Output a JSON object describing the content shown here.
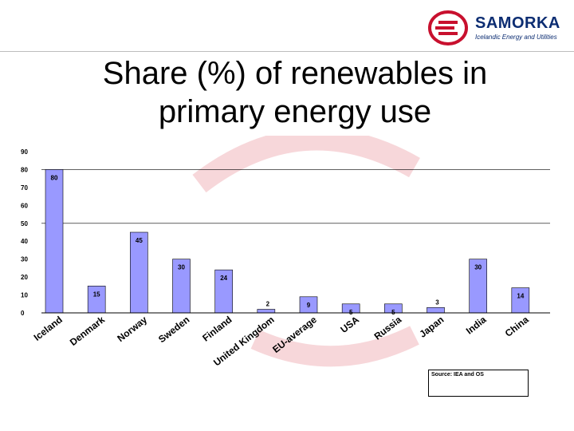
{
  "logo": {
    "name": "SAMORKA",
    "tagline": "Icelandic Energy and Utilities",
    "colors": {
      "red": "#c8102e",
      "navy": "#0c2d72"
    }
  },
  "slide": {
    "title_line1": "Share (%) of renewables in",
    "title_line2": "primary energy use",
    "source_note": "Source: IEA and OS"
  },
  "chart_data": {
    "type": "bar",
    "title": "Share (%) of renewables in primary energy use",
    "xlabel": "",
    "ylabel": "",
    "ylim": [
      0,
      90
    ],
    "yticks": [
      0,
      10,
      20,
      30,
      40,
      50,
      60,
      70,
      80,
      90
    ],
    "grid": "horizontal at 50 and 80",
    "bar_color": "#9999ff",
    "categories": [
      "Iceland",
      "Denmark",
      "Norway",
      "Sweden",
      "Finland",
      "United Kingdom",
      "EU-average",
      "USA",
      "Russia",
      "Japan",
      "India",
      "China"
    ],
    "values": [
      80,
      15,
      45,
      30,
      24,
      2,
      9,
      5,
      5,
      3,
      30,
      14
    ],
    "data_labels": [
      "80",
      "15",
      "45",
      "30",
      "24",
      "2",
      "9",
      "5",
      "5",
      "3",
      "30",
      "14"
    ]
  }
}
